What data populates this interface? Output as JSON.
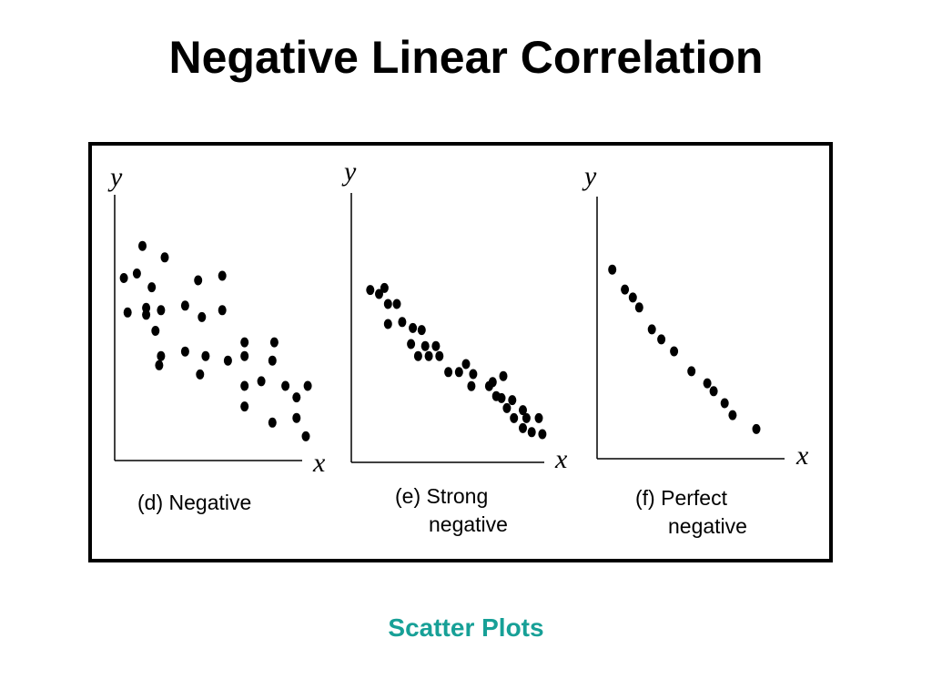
{
  "title": "Negative Linear Correlation",
  "footer": "Scatter Plots",
  "colors": {
    "footer": "#17a097",
    "points": "#000000"
  },
  "chart_data": [
    {
      "type": "scatter",
      "caption_lines": [
        "(d) Negative"
      ],
      "xlabel": "x",
      "ylabel": "y",
      "x_range": [
        0,
        10
      ],
      "y_range": [
        0,
        10
      ],
      "points": [
        [
          0.3,
          7.4
        ],
        [
          1.3,
          8.8
        ],
        [
          1.0,
          7.6
        ],
        [
          2.5,
          8.3
        ],
        [
          1.8,
          7.0
        ],
        [
          1.5,
          6.1
        ],
        [
          0.5,
          5.9
        ],
        [
          2.3,
          6.0
        ],
        [
          1.5,
          5.8
        ],
        [
          2.0,
          5.1
        ],
        [
          3.6,
          6.2
        ],
        [
          4.3,
          7.3
        ],
        [
          5.6,
          7.5
        ],
        [
          4.5,
          5.7
        ],
        [
          5.6,
          6.0
        ],
        [
          2.3,
          4.0
        ],
        [
          2.2,
          3.6
        ],
        [
          3.6,
          4.2
        ],
        [
          4.7,
          4.0
        ],
        [
          5.9,
          3.8
        ],
        [
          4.4,
          3.2
        ],
        [
          6.8,
          4.6
        ],
        [
          6.8,
          4.0
        ],
        [
          8.4,
          4.6
        ],
        [
          8.3,
          3.8
        ],
        [
          6.8,
          2.7
        ],
        [
          7.7,
          2.9
        ],
        [
          9.0,
          2.7
        ],
        [
          9.6,
          2.2
        ],
        [
          10.2,
          2.7
        ],
        [
          6.8,
          1.8
        ],
        [
          9.6,
          1.3
        ],
        [
          8.3,
          1.1
        ],
        [
          10.1,
          0.5
        ]
      ]
    },
    {
      "type": "scatter",
      "caption_lines": [
        "(e) Strong",
        "negative"
      ],
      "xlabel": "x",
      "ylabel": "y",
      "x_range": [
        0,
        10
      ],
      "y_range": [
        0,
        10
      ],
      "points": [
        [
          0.5,
          7.7
        ],
        [
          1.0,
          7.5
        ],
        [
          1.3,
          7.8
        ],
        [
          1.5,
          7.0
        ],
        [
          2.0,
          7.0
        ],
        [
          1.5,
          6.0
        ],
        [
          2.3,
          6.1
        ],
        [
          2.9,
          5.8
        ],
        [
          3.4,
          5.7
        ],
        [
          2.8,
          5.0
        ],
        [
          3.6,
          4.9
        ],
        [
          4.2,
          4.9
        ],
        [
          3.2,
          4.4
        ],
        [
          3.8,
          4.4
        ],
        [
          4.4,
          4.4
        ],
        [
          4.9,
          3.6
        ],
        [
          5.5,
          3.6
        ],
        [
          5.9,
          4.0
        ],
        [
          6.3,
          3.5
        ],
        [
          7.4,
          3.1
        ],
        [
          6.2,
          2.9
        ],
        [
          7.2,
          2.9
        ],
        [
          8.0,
          3.4
        ],
        [
          7.6,
          2.4
        ],
        [
          7.9,
          2.3
        ],
        [
          8.5,
          2.2
        ],
        [
          8.2,
          1.8
        ],
        [
          9.1,
          1.7
        ],
        [
          8.6,
          1.3
        ],
        [
          9.3,
          1.3
        ],
        [
          10.0,
          1.3
        ],
        [
          9.1,
          0.8
        ],
        [
          9.6,
          0.6
        ],
        [
          10.2,
          0.5
        ]
      ]
    },
    {
      "type": "scatter",
      "caption_lines": [
        "(f) Perfect",
        "negative"
      ],
      "xlabel": "x",
      "ylabel": "y",
      "x_range": [
        0,
        10
      ],
      "y_range": [
        0,
        10
      ],
      "points": [
        [
          0.5,
          8.3
        ],
        [
          1.3,
          7.3
        ],
        [
          1.8,
          6.9
        ],
        [
          2.2,
          6.4
        ],
        [
          3.0,
          5.3
        ],
        [
          3.6,
          4.8
        ],
        [
          4.4,
          4.2
        ],
        [
          5.5,
          3.2
        ],
        [
          6.5,
          2.6
        ],
        [
          6.9,
          2.2
        ],
        [
          7.6,
          1.6
        ],
        [
          8.1,
          1.0
        ],
        [
          9.6,
          0.3
        ]
      ]
    }
  ]
}
